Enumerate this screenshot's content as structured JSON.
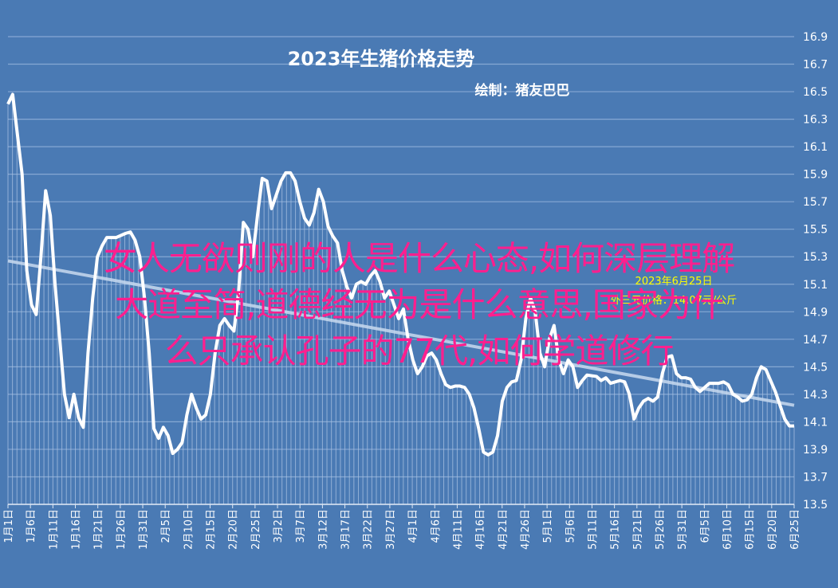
{
  "chart_data": {
    "type": "line",
    "title": "2023年生猪价格走势",
    "subtitle": "绘制：猪友巴巴",
    "ylim": [
      13.5,
      16.9
    ],
    "yticks": [
      "13.5",
      "13.7",
      "13.9",
      "14.1",
      "14.3",
      "14.5",
      "14.7",
      "14.9",
      "15.1",
      "15.3",
      "15.5",
      "15.7",
      "15.9",
      "16.1",
      "16.3",
      "16.5",
      "16.7",
      "16.9"
    ],
    "xticks": [
      "1月1日",
      "1月6日",
      "1月11日",
      "1月16日",
      "1月21日",
      "1月26日",
      "1月31日",
      "2月5日",
      "2月10日",
      "2月15日",
      "2月20日",
      "2月25日",
      "3月2日",
      "3月7日",
      "3月12日",
      "3月17日",
      "3月22日",
      "3月27日",
      "4月1日",
      "4月6日",
      "4月11日",
      "4月16日",
      "4月21日",
      "4月26日",
      "5月1日",
      "5月6日",
      "5月11日",
      "5月16日",
      "5月21日",
      "5月26日",
      "5月31日",
      "6月5日",
      "6月10日",
      "6月15日",
      "6月20日",
      "6月25日"
    ],
    "grid": true,
    "annotation": {
      "line1": "2023年6月25日",
      "line2": "外三元价格：14.07元/公斤"
    },
    "series": [
      {
        "kind": "price",
        "color": "#ffffff",
        "points": [
          [
            0,
            16.41
          ],
          [
            1,
            16.48
          ],
          [
            3,
            15.9
          ],
          [
            4,
            15.2
          ],
          [
            5,
            14.95
          ],
          [
            6,
            14.88
          ],
          [
            7,
            15.3
          ],
          [
            8,
            15.78
          ],
          [
            9,
            15.6
          ],
          [
            10,
            15.1
          ],
          [
            11,
            14.7
          ],
          [
            12,
            14.3
          ],
          [
            13,
            14.13
          ],
          [
            14,
            14.3
          ],
          [
            15,
            14.13
          ],
          [
            16,
            14.06
          ],
          [
            17,
            14.6
          ],
          [
            18,
            15.0
          ],
          [
            19,
            15.3
          ],
          [
            20,
            15.38
          ],
          [
            21,
            15.44
          ],
          [
            23,
            15.44
          ],
          [
            25,
            15.47
          ],
          [
            26,
            15.48
          ],
          [
            27,
            15.42
          ],
          [
            28,
            15.3
          ],
          [
            29,
            15.0
          ],
          [
            30,
            14.6
          ],
          [
            31,
            14.05
          ],
          [
            32,
            13.98
          ],
          [
            33,
            14.06
          ],
          [
            34,
            14.0
          ],
          [
            35,
            13.87
          ],
          [
            36,
            13.9
          ],
          [
            37,
            13.95
          ],
          [
            38,
            14.15
          ],
          [
            39,
            14.3
          ],
          [
            40,
            14.2
          ],
          [
            41,
            14.12
          ],
          [
            42,
            14.15
          ],
          [
            43,
            14.3
          ],
          [
            44,
            14.6
          ],
          [
            45,
            14.8
          ],
          [
            46,
            14.85
          ],
          [
            47,
            14.8
          ],
          [
            48,
            14.76
          ],
          [
            49,
            15.05
          ],
          [
            50,
            15.55
          ],
          [
            51,
            15.5
          ],
          [
            52,
            15.3
          ],
          [
            53,
            15.6
          ],
          [
            54,
            15.87
          ],
          [
            55,
            15.85
          ],
          [
            56,
            15.65
          ],
          [
            57,
            15.75
          ],
          [
            58,
            15.85
          ],
          [
            59,
            15.91
          ],
          [
            60,
            15.91
          ],
          [
            61,
            15.85
          ],
          [
            62,
            15.7
          ],
          [
            63,
            15.58
          ],
          [
            64,
            15.53
          ],
          [
            65,
            15.62
          ],
          [
            66,
            15.79
          ],
          [
            67,
            15.7
          ],
          [
            68,
            15.52
          ],
          [
            69,
            15.45
          ],
          [
            70,
            15.4
          ],
          [
            71,
            15.2
          ],
          [
            72,
            15.08
          ],
          [
            73,
            15.0
          ],
          [
            74,
            15.1
          ],
          [
            75,
            15.12
          ],
          [
            76,
            15.1
          ],
          [
            77,
            15.16
          ],
          [
            78,
            15.2
          ],
          [
            79,
            15.12
          ],
          [
            80,
            15.0
          ],
          [
            81,
            15.05
          ],
          [
            82,
            14.95
          ],
          [
            83,
            14.85
          ],
          [
            84,
            14.92
          ],
          [
            85,
            14.7
          ],
          [
            86,
            14.55
          ],
          [
            87,
            14.45
          ],
          [
            88,
            14.5
          ],
          [
            89,
            14.58
          ],
          [
            90,
            14.6
          ],
          [
            91,
            14.55
          ],
          [
            92,
            14.45
          ],
          [
            93,
            14.37
          ],
          [
            94,
            14.35
          ],
          [
            95,
            14.36
          ],
          [
            96,
            14.36
          ],
          [
            97,
            14.35
          ],
          [
            98,
            14.3
          ],
          [
            99,
            14.2
          ],
          [
            100,
            14.05
          ],
          [
            101,
            13.88
          ],
          [
            102,
            13.86
          ],
          [
            103,
            13.88
          ],
          [
            104,
            14.0
          ],
          [
            105,
            14.25
          ],
          [
            106,
            14.35
          ],
          [
            107,
            14.39
          ],
          [
            108,
            14.4
          ],
          [
            109,
            14.55
          ],
          [
            110,
            14.85
          ],
          [
            111,
            15.0
          ],
          [
            112,
            14.9
          ],
          [
            113,
            14.6
          ],
          [
            114,
            14.5
          ],
          [
            115,
            14.7
          ],
          [
            116,
            14.8
          ],
          [
            117,
            14.55
          ],
          [
            118,
            14.45
          ],
          [
            119,
            14.55
          ],
          [
            120,
            14.5
          ],
          [
            121,
            14.35
          ],
          [
            122,
            14.4
          ],
          [
            123,
            14.44
          ],
          [
            125,
            14.43
          ],
          [
            126,
            14.4
          ],
          [
            127,
            14.42
          ],
          [
            128,
            14.38
          ],
          [
            129,
            14.39
          ],
          [
            130,
            14.4
          ],
          [
            131,
            14.39
          ],
          [
            132,
            14.3
          ],
          [
            133,
            14.12
          ],
          [
            134,
            14.2
          ],
          [
            135,
            14.25
          ],
          [
            136,
            14.27
          ],
          [
            137,
            14.25
          ],
          [
            138,
            14.28
          ],
          [
            139,
            14.45
          ],
          [
            140,
            14.57
          ],
          [
            141,
            14.58
          ],
          [
            142,
            14.45
          ],
          [
            143,
            14.42
          ],
          [
            144,
            14.42
          ],
          [
            145,
            14.41
          ],
          [
            146,
            14.35
          ],
          [
            147,
            14.32
          ],
          [
            148,
            14.35
          ],
          [
            149,
            14.38
          ],
          [
            150,
            14.38
          ],
          [
            151,
            14.38
          ],
          [
            152,
            14.39
          ],
          [
            153,
            14.37
          ],
          [
            154,
            14.3
          ],
          [
            155,
            14.28
          ],
          [
            156,
            14.25
          ],
          [
            157,
            14.26
          ],
          [
            158,
            14.3
          ],
          [
            159,
            14.42
          ],
          [
            160,
            14.5
          ],
          [
            161,
            14.48
          ],
          [
            162,
            14.4
          ],
          [
            163,
            14.32
          ],
          [
            164,
            14.22
          ],
          [
            165,
            14.12
          ],
          [
            166,
            14.07
          ],
          [
            167,
            14.07
          ]
        ]
      },
      {
        "kind": "trend",
        "color": "#c8d9ee",
        "points": [
          [
            0,
            15.27
          ],
          [
            167,
            14.22
          ]
        ]
      }
    ]
  },
  "overlay": {
    "line1": "女人无欲则刚的人是什么心态,如何深层理解",
    "line2": "大道至简,道德经无为是什么意思,国家为什",
    "line3": "么只承认孔子的77代,如何学道修行"
  }
}
